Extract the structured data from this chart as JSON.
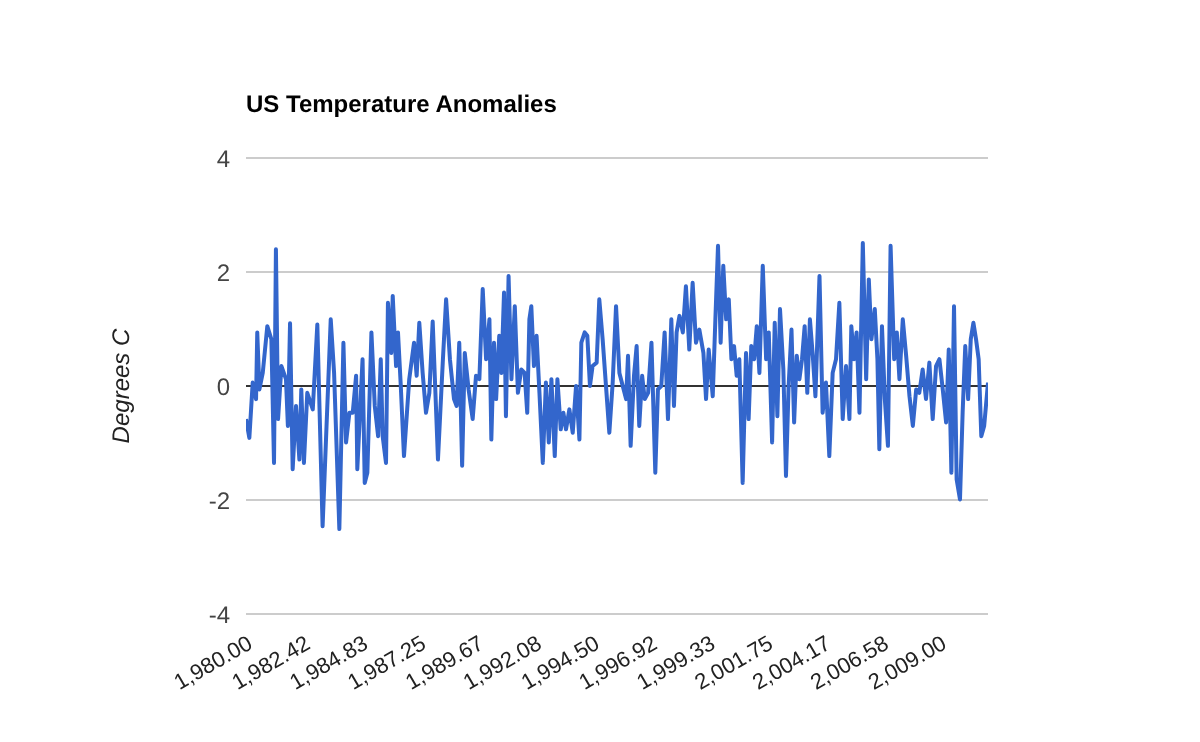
{
  "chart_data": {
    "type": "line",
    "title": "US Temperature Anomalies",
    "ylabel": "Degrees C",
    "color": "#3366cc",
    "x": [
      1980.0,
      1980.14,
      1980.28,
      1980.42,
      1980.47,
      1980.56,
      1980.7,
      1980.89,
      1981.06,
      1981.17,
      1981.25,
      1981.34,
      1981.48,
      1981.67,
      1981.75,
      1981.84,
      1981.95,
      1982.09,
      1982.23,
      1982.31,
      1982.42,
      1982.56,
      1982.79,
      1982.98,
      1983.2,
      1983.54,
      1983.68,
      1983.9,
      1984.07,
      1984.18,
      1984.32,
      1984.46,
      1984.6,
      1984.65,
      1984.87,
      1984.96,
      1985.07,
      1985.24,
      1985.38,
      1985.52,
      1985.63,
      1985.71,
      1985.85,
      1985.93,
      1986.07,
      1986.13,
      1986.27,
      1986.35,
      1986.46,
      1986.6,
      1986.82,
      1987.02,
      1987.13,
      1987.24,
      1987.38,
      1987.52,
      1987.66,
      1987.8,
      1988.02,
      1988.22,
      1988.36,
      1988.52,
      1988.69,
      1988.8,
      1988.91,
      1989.03,
      1989.14,
      1989.3,
      1989.47,
      1989.61,
      1989.75,
      1989.89,
      1990.03,
      1990.17,
      1990.25,
      1990.36,
      1990.45,
      1990.58,
      1990.67,
      1990.78,
      1990.86,
      1990.97,
      1991.09,
      1991.23,
      1991.36,
      1991.5,
      1991.64,
      1991.75,
      1991.84,
      1991.92,
      1992.03,
      1992.14,
      1992.26,
      1992.4,
      1992.53,
      1992.65,
      1992.76,
      1992.9,
      1993.01,
      1993.15,
      1993.26,
      1993.37,
      1993.51,
      1993.65,
      1993.79,
      1993.93,
      1994.01,
      1994.15,
      1994.26,
      1994.37,
      1994.48,
      1994.65,
      1994.76,
      1994.9,
      1995.04,
      1995.18,
      1995.32,
      1995.46,
      1995.6,
      1995.74,
      1995.88,
      1995.96,
      1996.07,
      1996.21,
      1996.32,
      1996.43,
      1996.55,
      1996.66,
      1996.8,
      1996.94,
      1997.1,
      1997.21,
      1997.35,
      1997.49,
      1997.63,
      1997.77,
      1997.88,
      1997.99,
      1998.11,
      1998.25,
      1998.38,
      1998.52,
      1998.66,
      1998.8,
      1998.94,
      1999.11,
      1999.22,
      1999.33,
      1999.5,
      1999.61,
      1999.72,
      1999.83,
      1999.94,
      2000.06,
      2000.17,
      2000.28,
      2000.39,
      2000.5,
      2000.61,
      2000.75,
      2000.89,
      2001.0,
      2001.11,
      2001.23,
      2001.34,
      2001.45,
      2001.59,
      2001.73,
      2001.84,
      2001.98,
      2002.09,
      2002.2,
      2002.31,
      2002.45,
      2002.56,
      2002.67,
      2002.79,
      2002.9,
      2003.01,
      2003.12,
      2003.23,
      2003.34,
      2003.45,
      2003.56,
      2003.68,
      2003.79,
      2003.96,
      2004.09,
      2004.23,
      2004.37,
      2004.51,
      2004.65,
      2004.79,
      2004.93,
      2005.07,
      2005.21,
      2005.29,
      2005.4,
      2005.51,
      2005.63,
      2005.77,
      2005.91,
      2006.02,
      2006.13,
      2006.27,
      2006.38,
      2006.46,
      2006.57,
      2006.69,
      2006.82,
      2006.93,
      2007.08,
      2007.19,
      2007.3,
      2007.44,
      2007.58,
      2007.72,
      2007.86,
      2008.0,
      2008.13,
      2008.27,
      2008.41,
      2008.55,
      2008.69,
      2008.83,
      2008.97,
      2009.11,
      2009.25,
      2009.36,
      2009.47,
      2009.58,
      2009.69,
      2009.83,
      2009.94,
      2010.05,
      2010.17,
      2010.28,
      2010.39,
      2010.5,
      2010.61,
      2010.72,
      2010.84,
      2011.0
    ],
    "values": [
      -0.58,
      -0.91,
      0.06,
      -0.23,
      0.94,
      -0.06,
      0.23,
      1.05,
      0.82,
      -1.35,
      2.4,
      -0.58,
      0.35,
      0.12,
      -0.7,
      1.1,
      -1.46,
      -0.35,
      -1.29,
      -0.06,
      -1.35,
      -0.12,
      -0.41,
      1.08,
      -2.46,
      1.17,
      0.23,
      -2.51,
      0.76,
      -0.99,
      -0.47,
      -0.47,
      0.18,
      -1.46,
      0.47,
      -1.7,
      -1.52,
      0.94,
      -0.35,
      -0.88,
      0.47,
      -0.88,
      -1.35,
      1.46,
      0.58,
      1.58,
      0.35,
      0.94,
      0.06,
      -1.23,
      0.12,
      0.76,
      0.18,
      1.11,
      0.23,
      -0.47,
      -0.12,
      1.13,
      -1.29,
      0.41,
      1.52,
      0.47,
      -0.23,
      -0.35,
      0.76,
      -1.4,
      0.58,
      -0.06,
      -0.58,
      0.18,
      0.12,
      1.7,
      0.47,
      1.17,
      -0.94,
      0.76,
      -0.23,
      0.88,
      0.23,
      1.64,
      -0.53,
      1.93,
      0.12,
      1.4,
      -0.12,
      0.29,
      0.23,
      -0.47,
      1.17,
      1.4,
      0.35,
      0.88,
      -0.12,
      -1.35,
      0.06,
      -0.99,
      0.12,
      -1.23,
      0.12,
      -0.76,
      -0.47,
      -0.76,
      -0.41,
      -0.82,
      0,
      -0.94,
      0.76,
      0.94,
      0.88,
      0,
      0.35,
      0.41,
      1.52,
      0.82,
      0,
      -0.82,
      0.06,
      1.4,
      0.23,
      0,
      -0.23,
      0.53,
      -1.05,
      0.18,
      0.7,
      -0.7,
      0.18,
      -0.23,
      -0.12,
      0.76,
      -1.52,
      -0.06,
      0,
      0.94,
      -0.58,
      1.17,
      -0.35,
      0.94,
      1.23,
      0.94,
      1.75,
      0.64,
      1.81,
      0.76,
      0.99,
      0.58,
      -0.23,
      0.64,
      -0.18,
      1.17,
      2.46,
      0.76,
      2.11,
      1.17,
      1.52,
      0.47,
      0.7,
      0.18,
      0.47,
      -1.7,
      0.58,
      -0.58,
      0.7,
      0.47,
      1.05,
      0.23,
      2.11,
      0.47,
      0.94,
      -0.99,
      1.11,
      -0.53,
      1.35,
      0.29,
      -1.58,
      0,
      0.99,
      -0.64,
      0.53,
      0.12,
      0.47,
      1.05,
      -0.12,
      1.17,
      0.53,
      -0.18,
      1.93,
      -0.47,
      0.06,
      -1.23,
      0.23,
      0.47,
      1.46,
      -0.58,
      0.35,
      -0.58,
      1.05,
      0.47,
      0.94,
      -0.47,
      2.51,
      0.12,
      1.87,
      0.82,
      1.35,
      0.47,
      -1.11,
      1.05,
      -0.23,
      -1.05,
      2.46,
      0.47,
      0.94,
      0.12,
      1.17,
      0.53,
      -0.18,
      -0.7,
      -0.06,
      -0.12,
      0.29,
      -0.23,
      0.41,
      -0.58,
      0.35,
      0.47,
      -0.06,
      -0.64,
      0.64,
      -1.52,
      1.4,
      -1.64,
      -1.99,
      -0.47,
      0.7,
      -0.23,
      0.82,
      1.11,
      0.82,
      0.47,
      -0.88,
      -0.7,
      0.06
    ],
    "xlim": [
      1980,
      2011
    ],
    "xticks": [
      {
        "value": 1980,
        "label": "1,980.00"
      },
      {
        "value": 1982.4167,
        "label": "1,982.42"
      },
      {
        "value": 1984.8333,
        "label": "1,984.83"
      },
      {
        "value": 1987.25,
        "label": "1,987.25"
      },
      {
        "value": 1989.6667,
        "label": "1,989.67"
      },
      {
        "value": 1992.0833,
        "label": "1,992.08"
      },
      {
        "value": 1994.5,
        "label": "1,994.50"
      },
      {
        "value": 1996.9167,
        "label": "1,996.92"
      },
      {
        "value": 1999.3333,
        "label": "1,999.33"
      },
      {
        "value": 2001.75,
        "label": "2,001.75"
      },
      {
        "value": 2004.1667,
        "label": "2,004.17"
      },
      {
        "value": 2006.5833,
        "label": "2,006.58"
      },
      {
        "value": 2009,
        "label": "2,009.00"
      }
    ],
    "ylim": [
      -4,
      4
    ],
    "yticks": [
      -4,
      -2,
      0,
      2,
      4
    ],
    "grid": "y",
    "ref_lines": [
      {
        "axis": "y",
        "value": 0,
        "color": "#333333"
      }
    ]
  }
}
